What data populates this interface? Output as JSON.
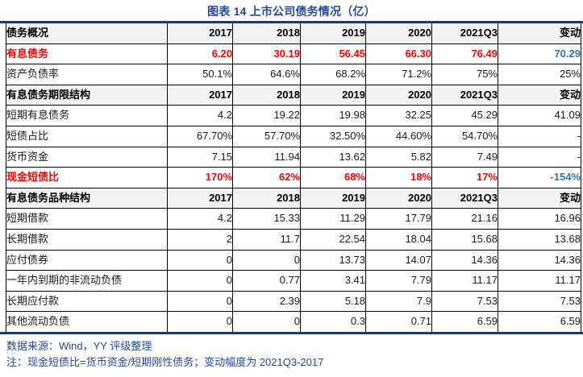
{
  "title": "图表 14 上市公司债务情况（亿）",
  "chart_data": {
    "type": "table",
    "title": "图表 14 上市公司债务情况（亿）",
    "unit": "亿",
    "columns": [
      "债务概况",
      "2017",
      "2018",
      "2019",
      "2020",
      "2021Q3",
      "变动"
    ],
    "sections": [
      {
        "header": [
          "债务概况",
          "2017",
          "2018",
          "2019",
          "2020",
          "2021Q3",
          "变动"
        ],
        "rows": [
          {
            "label": "有息债务",
            "values": [
              "6.20",
              "30.19",
              "56.45",
              "66.30",
              "76.49",
              "70.29"
            ],
            "style": "red"
          },
          {
            "label": "资产负债率",
            "values": [
              "50.1%",
              "64.6%",
              "68.2%",
              "71.2%",
              "75%",
              "25%"
            ],
            "style": "normal"
          }
        ]
      },
      {
        "header": [
          "有息债务期限结构",
          "2017",
          "2018",
          "2019",
          "2020",
          "2021Q3",
          "变动"
        ],
        "rows": [
          {
            "label": "短期有息债务",
            "values": [
              "4.2",
              "19.22",
              "19.98",
              "32.25",
              "45.29",
              "41.09"
            ],
            "style": "normal"
          },
          {
            "label": "短债占比",
            "values": [
              "67.70%",
              "57.70%",
              "32.50%",
              "44.60%",
              "54.70%",
              "-"
            ],
            "style": "normal"
          },
          {
            "label": "货币资金",
            "values": [
              "7.15",
              "11.94",
              "13.62",
              "5.82",
              "7.49",
              "-"
            ],
            "style": "normal"
          },
          {
            "label": "现金短债比",
            "values": [
              "170%",
              "62%",
              "68%",
              "18%",
              "17%",
              "-154%"
            ],
            "style": "red"
          }
        ]
      },
      {
        "header": [
          "有息债务品种结构",
          "2017",
          "2018",
          "2019",
          "2020",
          "2021Q3",
          "变动"
        ],
        "rows": [
          {
            "label": "短期借款",
            "values": [
              "4.2",
              "15.33",
              "11.29",
              "17.79",
              "21.16",
              "16.96"
            ],
            "style": "normal"
          },
          {
            "label": "长期借款",
            "values": [
              "2",
              "11.7",
              "22.54",
              "18.04",
              "15.68",
              "13.68"
            ],
            "style": "normal"
          },
          {
            "label": "应付债券",
            "values": [
              "0",
              "0",
              "13.73",
              "14.07",
              "14.36",
              "14.36"
            ],
            "style": "normal"
          },
          {
            "label": "一年内到期的非流动负债",
            "values": [
              "0",
              "0.77",
              "3.41",
              "7.79",
              "11.17",
              "11.17"
            ],
            "style": "normal"
          },
          {
            "label": "长期应付款",
            "values": [
              "0",
              "2.39",
              "5.18",
              "7.9",
              "7.53",
              "7.53"
            ],
            "style": "normal"
          },
          {
            "label": "其他流动负债",
            "values": [
              "0",
              "0",
              "0.3",
              "0.71",
              "6.59",
              "6.59"
            ],
            "style": "normal"
          }
        ]
      }
    ]
  },
  "footer": {
    "source": "数据来源：Wind，YY 评级整理",
    "note": "注：现金短债比=货币资金/短期刚性债务；变动幅度为 2021Q3-2017"
  },
  "colors": {
    "title_blue": "#2447A0",
    "rule_navy": "#1F3864",
    "highlight_red": "#FF0000",
    "change_blue": "#2E75B6",
    "section_header_bg": "#F2F2F2",
    "border": "#000000"
  }
}
